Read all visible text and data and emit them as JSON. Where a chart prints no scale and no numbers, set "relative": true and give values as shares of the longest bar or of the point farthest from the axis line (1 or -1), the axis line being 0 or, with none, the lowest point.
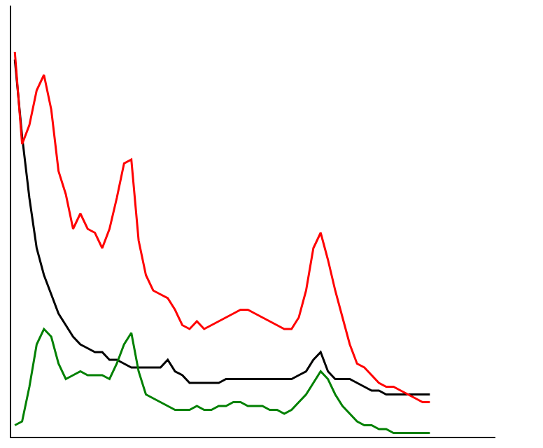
{
  "chart_data": {
    "type": "line",
    "relative": true,
    "marker": "none",
    "line_style": "solid",
    "categories": [
      null,
      null,
      null,
      null,
      null,
      null,
      null,
      null,
      null,
      null,
      null,
      null,
      null,
      null,
      null,
      null,
      null,
      null,
      null,
      null,
      null,
      null,
      null,
      null,
      null,
      null,
      null,
      null,
      null,
      null,
      null,
      null,
      null,
      null,
      null,
      null,
      null,
      null,
      null,
      null,
      null,
      null,
      null,
      null,
      null,
      null,
      null,
      null,
      null,
      null,
      null,
      null,
      null,
      null,
      null,
      null,
      null,
      null
    ],
    "series": [
      {
        "color": "#000000",
        "values": [
          0.98,
          0.78,
          0.62,
          0.49,
          0.42,
          0.37,
          0.32,
          0.29,
          0.26,
          0.24,
          0.23,
          0.22,
          0.22,
          0.2,
          0.2,
          0.19,
          0.18,
          0.18,
          0.18,
          0.18,
          0.18,
          0.2,
          0.17,
          0.16,
          0.14,
          0.14,
          0.14,
          0.14,
          0.14,
          0.15,
          0.15,
          0.15,
          0.15,
          0.15,
          0.15,
          0.15,
          0.15,
          0.15,
          0.15,
          0.16,
          0.17,
          0.2,
          0.22,
          0.17,
          0.15,
          0.15,
          0.15,
          0.14,
          0.13,
          0.12,
          0.12,
          0.11,
          0.11,
          0.11,
          0.11,
          0.11,
          0.11,
          0.11
        ]
      },
      {
        "color": "#ff0000",
        "values": [
          1.0,
          0.76,
          0.81,
          0.9,
          0.94,
          0.85,
          0.69,
          0.63,
          0.54,
          0.58,
          0.54,
          0.53,
          0.49,
          0.54,
          0.62,
          0.71,
          0.72,
          0.51,
          0.42,
          0.38,
          0.37,
          0.36,
          0.33,
          0.29,
          0.28,
          0.3,
          0.28,
          0.29,
          0.3,
          0.31,
          0.32,
          0.33,
          0.33,
          0.32,
          0.31,
          0.3,
          0.29,
          0.28,
          0.28,
          0.31,
          0.38,
          0.49,
          0.53,
          0.46,
          0.38,
          0.31,
          0.24,
          0.19,
          0.18,
          0.16,
          0.14,
          0.13,
          0.13,
          0.12,
          0.11,
          0.1,
          0.09,
          0.09
        ]
      },
      {
        "color": "#008000",
        "values": [
          0.03,
          0.04,
          0.13,
          0.24,
          0.28,
          0.26,
          0.19,
          0.15,
          0.16,
          0.17,
          0.16,
          0.16,
          0.16,
          0.15,
          0.19,
          0.24,
          0.27,
          0.17,
          0.11,
          0.1,
          0.09,
          0.08,
          0.07,
          0.07,
          0.07,
          0.08,
          0.07,
          0.07,
          0.08,
          0.08,
          0.09,
          0.09,
          0.08,
          0.08,
          0.08,
          0.07,
          0.07,
          0.06,
          0.07,
          0.09,
          0.11,
          0.14,
          0.17,
          0.15,
          0.11,
          0.08,
          0.06,
          0.04,
          0.03,
          0.03,
          0.02,
          0.02,
          0.01,
          0.01,
          0.01,
          0.01,
          0.01,
          0.01
        ]
      }
    ]
  }
}
